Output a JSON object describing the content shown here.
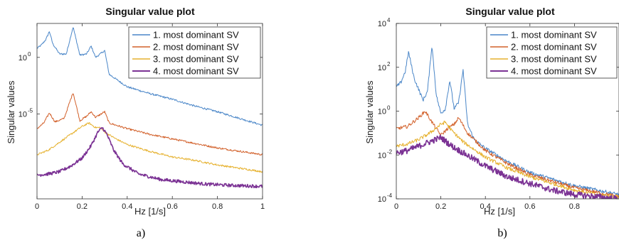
{
  "colors": [
    "#4a86c8",
    "#d2602a",
    "#e6b12e",
    "#7b3294"
  ],
  "chart_data": [
    {
      "type": "line",
      "panel_label": "a)",
      "title": "Singular value plot",
      "xlabel": "Hz [1/s]",
      "ylabel": "Singular values",
      "yscale": "log",
      "xlim": [
        0,
        1
      ],
      "ylim": [
        -12.5,
        3
      ],
      "xticks": [
        "0",
        "0.2",
        "0.4",
        "0.6",
        "0.8",
        "1"
      ],
      "yticks": [
        {
          "base": "10",
          "exp": "0",
          "value": 0
        },
        {
          "base": "10",
          "exp": "-5",
          "value": -5
        }
      ],
      "grid": false,
      "legend": "top-right",
      "series": [
        {
          "name": "1. most dominant SV",
          "x": [
            0,
            0.02,
            0.04,
            0.055,
            0.07,
            0.1,
            0.13,
            0.16,
            0.19,
            0.22,
            0.24,
            0.26,
            0.3,
            0.32,
            0.4,
            0.5,
            0.6,
            0.7,
            0.8,
            0.9,
            1
          ],
          "y": [
            0.8,
            1.1,
            1.6,
            2.3,
            1.2,
            0.3,
            0.3,
            2.7,
            0.2,
            0.3,
            1.0,
            0.0,
            0.6,
            -1.5,
            -2.6,
            -3.2,
            -3.7,
            -4.3,
            -4.8,
            -5.4,
            -6.0
          ]
        },
        {
          "name": "2. most dominant SV",
          "x": [
            0,
            0.03,
            0.055,
            0.08,
            0.12,
            0.16,
            0.19,
            0.22,
            0.24,
            0.26,
            0.3,
            0.32,
            0.4,
            0.5,
            0.6,
            0.7,
            0.8,
            0.9,
            1
          ],
          "y": [
            -6.3,
            -5.8,
            -4.9,
            -5.7,
            -5.4,
            -3.1,
            -5.6,
            -5.2,
            -4.8,
            -5.3,
            -4.8,
            -5.8,
            -6.3,
            -6.8,
            -7.2,
            -7.6,
            -8.0,
            -8.3,
            -8.6
          ]
        },
        {
          "name": "3. most dominant SV",
          "x": [
            0,
            0.05,
            0.1,
            0.15,
            0.2,
            0.23,
            0.26,
            0.28,
            0.3,
            0.35,
            0.4,
            0.5,
            0.6,
            0.7,
            0.8,
            0.9,
            1
          ],
          "y": [
            -8.6,
            -8.2,
            -7.5,
            -6.8,
            -6.1,
            -5.8,
            -6.2,
            -6.2,
            -6.6,
            -7.2,
            -7.7,
            -8.3,
            -8.8,
            -9.1,
            -9.5,
            -9.8,
            -10.1
          ]
        },
        {
          "name": "4. most dominant SV",
          "x": [
            0,
            0.05,
            0.1,
            0.15,
            0.2,
            0.24,
            0.27,
            0.29,
            0.31,
            0.34,
            0.38,
            0.45,
            0.55,
            0.65,
            0.75,
            0.85,
            1
          ],
          "y": [
            -10.4,
            -10.3,
            -10.1,
            -9.6,
            -8.9,
            -7.8,
            -6.6,
            -6.2,
            -6.8,
            -8.2,
            -9.4,
            -10.3,
            -10.8,
            -11.0,
            -11.2,
            -11.3,
            -11.4
          ]
        }
      ]
    },
    {
      "type": "line",
      "panel_label": "b)",
      "title": "Singular value plot",
      "xlabel": "Hz [1/s]",
      "ylabel": "Singular values",
      "yscale": "log",
      "xlim": [
        0,
        1
      ],
      "ylim": [
        -4,
        4
      ],
      "xticks": [
        "0",
        "0.2",
        "0.4",
        "0.6",
        "0.8"
      ],
      "yticks": [
        {
          "base": "10",
          "exp": "4",
          "value": 4
        },
        {
          "base": "10",
          "exp": "2",
          "value": 2
        },
        {
          "base": "10",
          "exp": "0",
          "value": 0
        },
        {
          "base": "10",
          "exp": "-2",
          "value": -2
        },
        {
          "base": "10",
          "exp": "-4",
          "value": -4
        }
      ],
      "grid": false,
      "legend": "top-right",
      "series": [
        {
          "name": "1. most dominant SV",
          "x": [
            0,
            0.02,
            0.04,
            0.055,
            0.08,
            0.12,
            0.14,
            0.16,
            0.18,
            0.2,
            0.22,
            0.24,
            0.26,
            0.28,
            0.3,
            0.32,
            0.35,
            0.4,
            0.5,
            0.6,
            0.7,
            0.8,
            0.9,
            1
          ],
          "y": [
            1.1,
            1.3,
            1.8,
            2.7,
            1.5,
            0.5,
            0.9,
            3.0,
            0.7,
            -0.1,
            0.1,
            1.4,
            0.1,
            0.4,
            1.9,
            -0.6,
            -1.3,
            -1.7,
            -2.3,
            -2.8,
            -3.1,
            -3.4,
            -3.6,
            -3.8
          ]
        },
        {
          "name": "2. most dominant SV",
          "x": [
            0,
            0.05,
            0.1,
            0.13,
            0.16,
            0.2,
            0.23,
            0.26,
            0.28,
            0.32,
            0.4,
            0.5,
            0.6,
            0.7,
            0.8,
            0.9,
            1
          ],
          "y": [
            -0.8,
            -0.7,
            -0.3,
            0.0,
            -0.5,
            -1.1,
            -0.8,
            -0.6,
            -0.3,
            -1.0,
            -1.8,
            -2.4,
            -2.9,
            -3.2,
            -3.5,
            -3.7,
            -3.9
          ]
        },
        {
          "name": "3. most dominant SV",
          "x": [
            0,
            0.05,
            0.1,
            0.15,
            0.2,
            0.22,
            0.25,
            0.3,
            0.4,
            0.5,
            0.6,
            0.7,
            0.8,
            0.9,
            1
          ],
          "y": [
            -1.6,
            -1.5,
            -1.3,
            -1.0,
            -0.6,
            -0.5,
            -0.9,
            -1.4,
            -2.1,
            -2.6,
            -3.0,
            -3.3,
            -3.6,
            -3.8,
            -3.9
          ]
        },
        {
          "name": "4. most dominant SV",
          "x": [
            0,
            0.05,
            0.1,
            0.15,
            0.2,
            0.25,
            0.3,
            0.4,
            0.5,
            0.6,
            0.7,
            0.8,
            0.9,
            1
          ],
          "y": [
            -1.9,
            -1.8,
            -1.6,
            -1.4,
            -1.2,
            -1.6,
            -1.9,
            -2.5,
            -3.0,
            -3.3,
            -3.6,
            -3.8,
            -3.9,
            -4.0
          ]
        }
      ]
    }
  ]
}
